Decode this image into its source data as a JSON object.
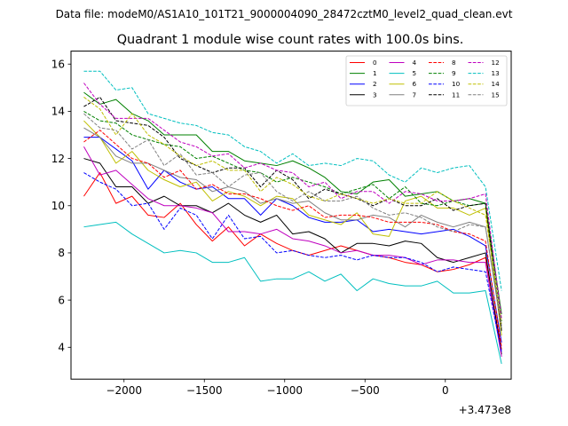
{
  "header": {
    "data_file": "Data file: modeM0/AS1A10_101T21_9000004090_28472cztM0_level2_quad_clean.evt"
  },
  "chart_data": {
    "type": "line",
    "title": "Quadrant 1 module wise count rates with 100.0s bins.",
    "xlabel": "",
    "ylabel": "",
    "x_offset_label": "+3.473e8",
    "xlim": [
      -2330,
      410
    ],
    "ylim": [
      2.65,
      16.55
    ],
    "xticks": [
      -2000,
      -1500,
      -1000,
      -500,
      0
    ],
    "xtick_labels": [
      "−2000",
      "−1500",
      "−1000",
      "−500",
      "0"
    ],
    "yticks": [
      4,
      6,
      8,
      10,
      12,
      14,
      16
    ],
    "ytick_labels": [
      "4",
      "6",
      "8",
      "10",
      "12",
      "14",
      "16"
    ],
    "grid": false,
    "legend_position": "top-right",
    "legend_columns": 4,
    "x": [
      -2250,
      -2150,
      -2050,
      -1950,
      -1850,
      -1750,
      -1650,
      -1550,
      -1450,
      -1350,
      -1250,
      -1150,
      -1050,
      -950,
      -850,
      -750,
      -650,
      -550,
      -450,
      -350,
      -250,
      -150,
      -50,
      50,
      150,
      250,
      350
    ],
    "series": [
      {
        "name": "0",
        "color": "#ff0000",
        "dash": "solid",
        "values": [
          10.4,
          11.4,
          10.1,
          10.4,
          9.6,
          9.5,
          10.1,
          9.2,
          8.5,
          9.1,
          8.3,
          8.8,
          8.4,
          8.1,
          7.9,
          8.1,
          8.3,
          8.1,
          7.9,
          7.8,
          7.6,
          7.5,
          7.2,
          7.3,
          7.5,
          7.8,
          3.9
        ]
      },
      {
        "name": "1",
        "color": "#008000",
        "dash": "solid",
        "values": [
          14.8,
          14.3,
          14.5,
          13.9,
          13.6,
          13.0,
          13.0,
          13.0,
          12.3,
          12.3,
          11.9,
          11.8,
          11.7,
          11.9,
          11.6,
          11.2,
          10.6,
          10.5,
          11.0,
          11.1,
          10.4,
          10.5,
          10.6,
          10.2,
          10.3,
          10.1,
          5.4
        ]
      },
      {
        "name": "2",
        "color": "#0000ff",
        "dash": "solid",
        "values": [
          12.9,
          12.9,
          12.4,
          11.9,
          10.7,
          11.5,
          11.0,
          10.7,
          10.8,
          10.3,
          10.3,
          9.6,
          10.3,
          10.0,
          9.5,
          9.3,
          9.3,
          9.4,
          8.9,
          9.0,
          8.9,
          8.8,
          8.9,
          9.0,
          8.7,
          8.3,
          4.2
        ]
      },
      {
        "name": "3",
        "color": "#000000",
        "dash": "solid",
        "values": [
          12.0,
          11.8,
          10.8,
          10.8,
          10.1,
          10.4,
          10.0,
          10.0,
          9.7,
          10.1,
          9.6,
          9.3,
          9.6,
          8.8,
          8.9,
          8.6,
          8.0,
          8.4,
          8.4,
          8.3,
          8.5,
          8.4,
          7.8,
          7.6,
          7.8,
          8.0,
          3.7
        ]
      },
      {
        "name": "4",
        "color": "#bf00bf",
        "dash": "solid",
        "values": [
          12.5,
          11.3,
          11.5,
          10.9,
          10.3,
          10.0,
          10.0,
          9.9,
          9.7,
          8.9,
          8.9,
          8.8,
          9.0,
          8.6,
          8.5,
          8.3,
          8.0,
          8.1,
          7.9,
          7.9,
          7.8,
          7.5,
          7.7,
          7.7,
          7.6,
          7.6,
          3.6
        ]
      },
      {
        "name": "5",
        "color": "#00bfbf",
        "dash": "solid",
        "values": [
          9.1,
          9.2,
          9.3,
          8.8,
          8.4,
          8.0,
          8.1,
          8.0,
          7.6,
          7.6,
          7.8,
          6.8,
          6.9,
          6.9,
          7.2,
          6.8,
          7.1,
          6.4,
          6.9,
          6.7,
          6.6,
          6.6,
          6.8,
          6.3,
          6.3,
          6.4,
          3.3
        ]
      },
      {
        "name": "6",
        "color": "#bfbf00",
        "dash": "solid",
        "values": [
          13.6,
          12.9,
          11.8,
          12.3,
          11.5,
          11.1,
          10.8,
          11.0,
          10.2,
          10.6,
          10.4,
          10.0,
          10.4,
          10.3,
          9.6,
          9.4,
          9.2,
          9.7,
          8.8,
          8.7,
          10.2,
          10.4,
          9.9,
          9.9,
          9.6,
          9.9,
          4.5
        ]
      },
      {
        "name": "7",
        "color": "#808080",
        "dash": "solid",
        "values": [
          13.3,
          12.9,
          12.1,
          11.8,
          11.8,
          11.5,
          11.2,
          11.1,
          10.6,
          10.8,
          10.6,
          10.1,
          10.3,
          10.1,
          10.2,
          9.7,
          9.4,
          9.4,
          9.6,
          9.5,
          9.1,
          9.6,
          9.3,
          9.1,
          9.3,
          9.1,
          4.8
        ]
      },
      {
        "name": "8",
        "color": "#ff0000",
        "dash": "dashed",
        "values": [
          12.7,
          13.2,
          12.6,
          12.0,
          11.8,
          11.2,
          11.5,
          10.7,
          10.9,
          10.5,
          10.5,
          10.3,
          10.0,
          9.8,
          10.0,
          9.5,
          9.6,
          9.6,
          9.5,
          9.3,
          9.3,
          9.3,
          9.2,
          8.9,
          8.8,
          8.5,
          4.0
        ]
      },
      {
        "name": "9",
        "color": "#008000",
        "dash": "dashed",
        "values": [
          14.0,
          13.6,
          13.5,
          13.0,
          12.8,
          12.6,
          12.5,
          12.0,
          12.1,
          11.8,
          11.5,
          11.4,
          11.0,
          11.2,
          11.0,
          10.8,
          10.5,
          10.7,
          10.9,
          10.3,
          10.8,
          10.1,
          10.0,
          10.2,
          10.0,
          10.1,
          5.1
        ]
      },
      {
        "name": "10",
        "color": "#0000ff",
        "dash": "dashed",
        "values": [
          11.4,
          11.0,
          10.7,
          10.0,
          10.1,
          9.0,
          9.9,
          9.6,
          8.6,
          9.6,
          8.6,
          8.7,
          8.0,
          8.1,
          7.9,
          7.8,
          7.9,
          7.7,
          7.9,
          7.8,
          7.8,
          7.6,
          7.2,
          7.4,
          7.3,
          7.2,
          3.8
        ]
      },
      {
        "name": "11",
        "color": "#000000",
        "dash": "dashed",
        "values": [
          14.2,
          14.6,
          13.6,
          13.5,
          13.4,
          12.9,
          12.0,
          11.7,
          11.4,
          11.6,
          11.6,
          10.8,
          11.5,
          11.1,
          10.3,
          10.7,
          10.5,
          10.3,
          10.0,
          10.3,
          10.0,
          10.0,
          10.3,
          9.8,
          10.0,
          10.1,
          4.7
        ]
      },
      {
        "name": "12",
        "color": "#bf00bf",
        "dash": "dashed",
        "values": [
          15.2,
          14.3,
          13.7,
          13.7,
          13.7,
          13.2,
          12.7,
          12.5,
          12.1,
          12.2,
          11.6,
          11.8,
          11.5,
          11.4,
          10.8,
          11.0,
          10.3,
          10.6,
          10.6,
          10.1,
          10.6,
          10.5,
          10.2,
          10.2,
          10.3,
          10.5,
          5.2
        ]
      },
      {
        "name": "13",
        "color": "#00bfbf",
        "dash": "dashed",
        "values": [
          15.7,
          15.7,
          14.9,
          15.0,
          13.9,
          13.7,
          13.5,
          13.4,
          13.1,
          13.0,
          12.5,
          12.3,
          11.8,
          12.2,
          11.7,
          11.8,
          11.7,
          12.0,
          11.9,
          11.3,
          11.0,
          11.6,
          11.4,
          11.6,
          11.7,
          10.8,
          6.4
        ]
      },
      {
        "name": "14",
        "color": "#bfbf00",
        "dash": "dashed",
        "values": [
          14.6,
          14.1,
          13.0,
          13.9,
          13.0,
          12.6,
          12.1,
          11.7,
          11.9,
          11.5,
          11.5,
          10.6,
          11.2,
          10.9,
          10.4,
          10.2,
          10.5,
          10.3,
          10.1,
          10.3,
          10.1,
          10.1,
          10.6,
          10.2,
          9.9,
          9.6,
          5.0
        ]
      },
      {
        "name": "15",
        "color": "#808080",
        "dash": "dashed",
        "values": [
          13.9,
          13.3,
          13.2,
          12.4,
          12.8,
          11.7,
          12.2,
          11.3,
          11.4,
          10.8,
          11.3,
          11.4,
          10.6,
          10.2,
          10.6,
          10.2,
          10.2,
          10.4,
          9.9,
          9.6,
          9.7,
          9.5,
          9.1,
          8.9,
          9.2,
          9.1,
          4.9
        ]
      }
    ]
  }
}
